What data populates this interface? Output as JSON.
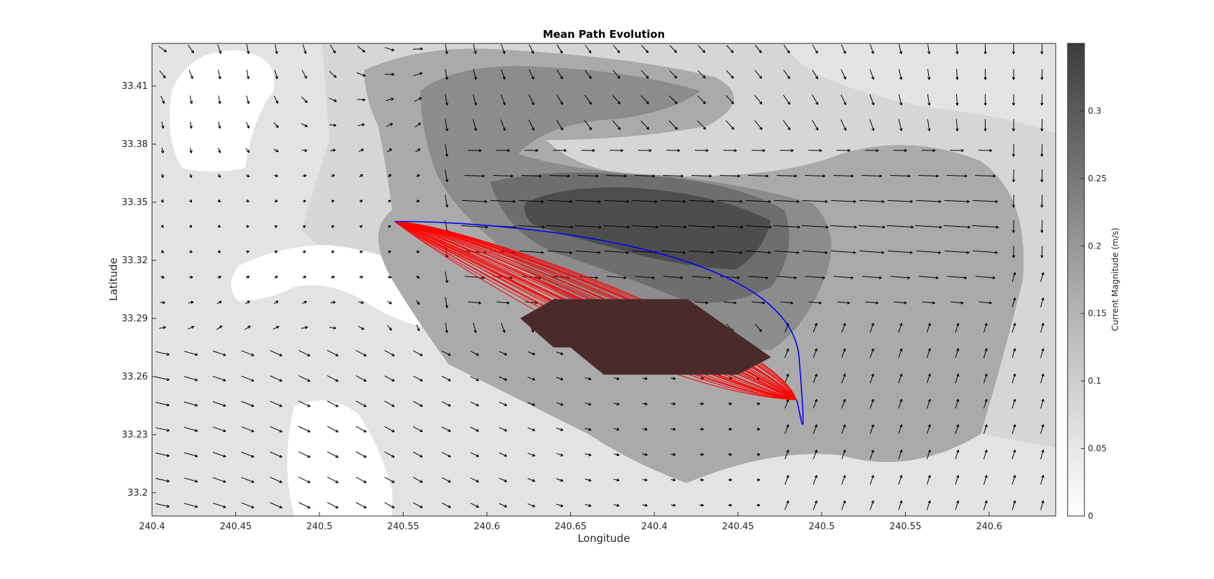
{
  "chart_data": {
    "type": "contour-quiver",
    "title": "Mean Path Evolution",
    "xlabel": "Longitude",
    "ylabel": "Latitude",
    "colorbar_label": "Current Magnitude (m/s)",
    "x_tick_labels": [
      "240.4",
      "240.45",
      "240.5",
      "240.55",
      "240.6",
      "240.65",
      "240.4",
      "240.45",
      "240.5",
      "240.55",
      "240.6"
    ],
    "y_tick_labels": [
      "33.2",
      "33.23",
      "33.26",
      "33.29",
      "33.32",
      "33.35",
      "33.38",
      "33.41"
    ],
    "y_ticks": [
      33.2,
      33.23,
      33.26,
      33.29,
      33.32,
      33.35,
      33.38,
      33.41
    ],
    "ylim": [
      33.188,
      33.432
    ],
    "xlim": [
      240.4,
      240.94
    ],
    "colorbar_ticks": [
      0,
      0.05,
      0.1,
      0.15,
      0.2,
      0.25,
      0.3
    ],
    "colorbar_tick_labels": [
      "0",
      "0.05",
      "0.1",
      "0.15",
      "0.2",
      "0.25",
      "0.3"
    ],
    "colorbar_range": [
      0,
      0.35
    ],
    "grid": false,
    "colors": {
      "mean_path": "#0000ff",
      "sample_paths": "#ff0000",
      "obstacle": "#4a2a2a",
      "arrows": "#000000"
    },
    "mean_path": {
      "start": [
        240.545,
        33.34
      ],
      "end": [
        240.785,
        33.248
      ]
    },
    "obstacle_polygon": [
      [
        240.62,
        33.29
      ],
      [
        240.64,
        33.3
      ],
      [
        240.72,
        33.3
      ],
      [
        240.77,
        33.27
      ],
      [
        240.75,
        33.261
      ],
      [
        240.67,
        33.261
      ],
      [
        240.65,
        33.275
      ],
      [
        240.64,
        33.275
      ]
    ]
  }
}
